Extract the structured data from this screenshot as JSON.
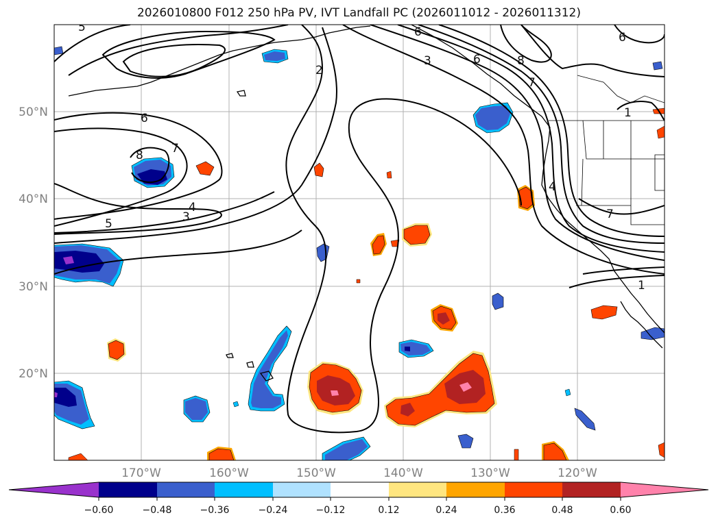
{
  "title": "2026010800 F012 250 hPa PV, IVT Landfall PC (2026011012 - 2026011312)",
  "lat_ticks": [
    "50°N",
    "40°N",
    "30°N",
    "20°N"
  ],
  "lon_ticks": [
    "170°W",
    "160°W",
    "150°W",
    "140°W",
    "130°W",
    "120°W"
  ],
  "colorbar": {
    "tick_labels": [
      "−0.60",
      "−0.48",
      "−0.36",
      "−0.24",
      "−0.12",
      "0.12",
      "0.24",
      "0.36",
      "0.48",
      "0.60"
    ],
    "colors": [
      "#9932cc",
      "#00008b",
      "#3a5fcd",
      "#00bfff",
      "#b0e2ff",
      "#ffffff",
      "#ffe680",
      "#ffa500",
      "#ff4500",
      "#b22222",
      "#ff82ab"
    ]
  },
  "contour_labels": [
    "5",
    "6",
    "8",
    "7",
    "4",
    "3",
    "5",
    "2",
    "3",
    "6",
    "8",
    "7",
    "6",
    "4",
    "1",
    "1",
    "7",
    "6"
  ],
  "colors": {
    "contour": "#000000",
    "grid": "#b0b0b0",
    "tick_text": "#808080"
  }
}
